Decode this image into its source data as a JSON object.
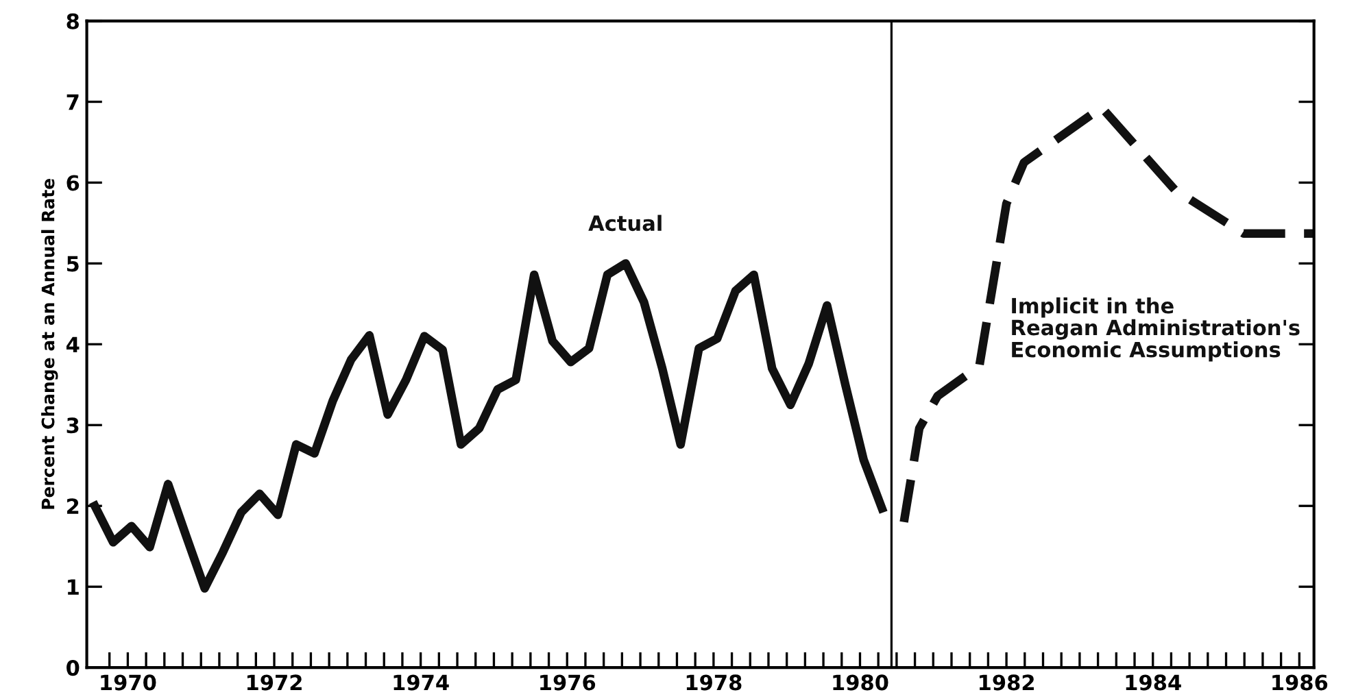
{
  "chart_data": {
    "type": "line",
    "ylabel": "Percent Change at an Annual Rate",
    "x": [
      1970.05,
      1970.3,
      1970.55,
      1970.8,
      1971.05,
      1971.3,
      1971.55,
      1971.8,
      1972.05,
      1972.3,
      1972.55,
      1972.8,
      1973.05,
      1973.3,
      1973.55,
      1973.8,
      1974.05,
      1974.3,
      1974.55,
      1974.8,
      1975.05,
      1975.3,
      1975.55,
      1975.8,
      1976.05,
      1976.3,
      1976.55,
      1976.8,
      1977.05,
      1977.3,
      1977.55,
      1977.8,
      1978.05,
      1978.3,
      1978.55,
      1978.8,
      1979.05,
      1979.3,
      1979.55,
      1979.8,
      1980.05,
      1980.3,
      1980.55,
      1980.8
    ],
    "series": [
      {
        "name": "Actual",
        "color": "#111111",
        "line_style": "solid",
        "values": [
          2.0,
          1.55,
          1.75,
          1.49,
          2.27,
          1.62,
          0.98,
          1.43,
          1.92,
          2.15,
          1.89,
          2.76,
          2.65,
          3.3,
          3.81,
          4.11,
          3.13,
          3.56,
          4.1,
          3.93,
          2.76,
          2.96,
          3.44,
          3.56,
          4.86,
          4.04,
          3.78,
          3.95,
          4.86,
          5.0,
          4.52,
          3.7,
          2.76,
          3.95,
          4.07,
          4.66,
          4.86,
          3.7,
          3.25,
          3.76,
          4.48,
          3.5,
          2.57,
          1.97
        ]
      },
      {
        "name": "Implicit in the\nReagan Administration's\nEconomic Assumptions",
        "color": "#111111",
        "line_style": "dashed",
        "x": [
          1981.1,
          1981.31,
          1981.56,
          1982.13,
          1982.5,
          1982.74,
          1983.8,
          1984.8,
          1985.74,
          1986.7
        ],
        "values": [
          1.8,
          2.96,
          3.36,
          3.73,
          5.74,
          6.25,
          6.93,
          5.91,
          5.37,
          5.37
        ]
      }
    ],
    "xlim": [
      1969.94,
      1986.7
    ],
    "xticks": [
      {
        "value": 1970.5,
        "label": "1970"
      },
      {
        "value": 1972.5,
        "label": "1972"
      },
      {
        "value": 1974.5,
        "label": "1974"
      },
      {
        "value": 1976.5,
        "label": "1976"
      },
      {
        "value": 1978.5,
        "label": "1978"
      },
      {
        "value": 1980.5,
        "label": "1980"
      },
      {
        "value": 1982.5,
        "label": "1982"
      },
      {
        "value": 1984.5,
        "label": "1984"
      },
      {
        "value": 1986.5,
        "label": "1986"
      },
      {
        "value": 1970.25,
        "label": null
      },
      {
        "value": 1970.75,
        "label": null
      },
      {
        "value": 1971,
        "label": null
      },
      {
        "value": 1971.25,
        "label": null
      },
      {
        "value": 1971.5,
        "label": null
      },
      {
        "value": 1971.75,
        "label": null
      },
      {
        "value": 1972,
        "label": null
      },
      {
        "value": 1972.25,
        "label": null
      },
      {
        "value": 1972.75,
        "label": null
      },
      {
        "value": 1973,
        "label": null
      },
      {
        "value": 1973.25,
        "label": null
      },
      {
        "value": 1973.5,
        "label": null
      },
      {
        "value": 1973.75,
        "label": null
      },
      {
        "value": 1974,
        "label": null
      },
      {
        "value": 1974.25,
        "label": null
      },
      {
        "value": 1974.75,
        "label": null
      },
      {
        "value": 1975,
        "label": null
      },
      {
        "value": 1975.25,
        "label": null
      },
      {
        "value": 1975.5,
        "label": null
      },
      {
        "value": 1975.75,
        "label": null
      },
      {
        "value": 1976,
        "label": null
      },
      {
        "value": 1976.25,
        "label": null
      },
      {
        "value": 1976.75,
        "label": null
      },
      {
        "value": 1977,
        "label": null
      },
      {
        "value": 1977.25,
        "label": null
      },
      {
        "value": 1977.5,
        "label": null
      },
      {
        "value": 1977.75,
        "label": null
      },
      {
        "value": 1978,
        "label": null
      },
      {
        "value": 1978.25,
        "label": null
      },
      {
        "value": 1978.75,
        "label": null
      },
      {
        "value": 1979,
        "label": null
      },
      {
        "value": 1979.25,
        "label": null
      },
      {
        "value": 1979.5,
        "label": null
      },
      {
        "value": 1979.75,
        "label": null
      },
      {
        "value": 1980,
        "label": null
      },
      {
        "value": 1980.25,
        "label": null
      },
      {
        "value": 1980.75,
        "label": null
      },
      {
        "value": 1981,
        "label": null
      },
      {
        "value": 1981.25,
        "label": null
      },
      {
        "value": 1981.5,
        "label": null
      },
      {
        "value": 1981.75,
        "label": null
      },
      {
        "value": 1982,
        "label": null
      },
      {
        "value": 1982.25,
        "label": null
      },
      {
        "value": 1982.75,
        "label": null
      },
      {
        "value": 1983,
        "label": null
      },
      {
        "value": 1983.25,
        "label": null
      },
      {
        "value": 1983.5,
        "label": null
      },
      {
        "value": 1983.75,
        "label": null
      },
      {
        "value": 1984,
        "label": null
      },
      {
        "value": 1984.25,
        "label": null
      },
      {
        "value": 1984.75,
        "label": null
      },
      {
        "value": 1985,
        "label": null
      },
      {
        "value": 1985.25,
        "label": null
      },
      {
        "value": 1985.5,
        "label": null
      },
      {
        "value": 1985.75,
        "label": null
      },
      {
        "value": 1986,
        "label": null
      },
      {
        "value": 1986.25,
        "label": null
      }
    ],
    "ylim": [
      0,
      8
    ],
    "yticks": [
      0,
      1,
      2,
      3,
      4,
      5,
      6,
      7,
      8
    ],
    "ref_lines": [
      {
        "axis": "x",
        "value": 1980.93,
        "color": "#111111",
        "line_style": "solid"
      }
    ],
    "grid": false,
    "legend": false,
    "marker": "none"
  }
}
